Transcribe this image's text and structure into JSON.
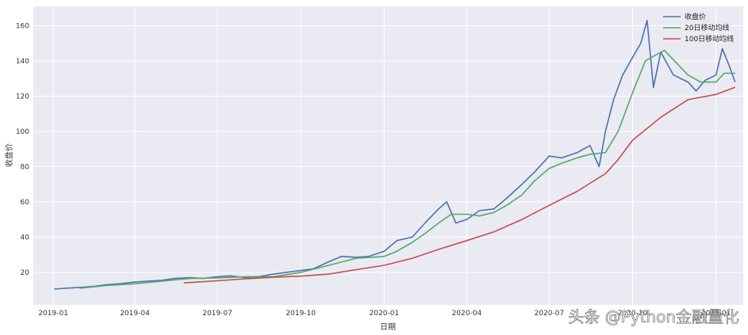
{
  "chart_data": {
    "type": "line",
    "title": "",
    "xlabel": "日期",
    "ylabel": "收盘价",
    "xlim": [
      "2018-12-10",
      "2021-01-31"
    ],
    "ylim": [
      1.5,
      171
    ],
    "grid": true,
    "legend_position": "top-right",
    "x_ticks": [
      {
        "date": "2019-01-01",
        "label": "2019-01"
      },
      {
        "date": "2019-04-01",
        "label": "2019-04"
      },
      {
        "date": "2019-07-01",
        "label": "2019-07"
      },
      {
        "date": "2019-10-01",
        "label": "2019-10"
      },
      {
        "date": "2020-01-01",
        "label": "2020-01"
      },
      {
        "date": "2020-04-01",
        "label": "2020-04"
      },
      {
        "date": "2020-07-01",
        "label": "2020-07"
      },
      {
        "date": "2020-10-01",
        "label": "2020-10"
      },
      {
        "date": "2021-01-01",
        "label": "2021-01"
      }
    ],
    "y_ticks": [
      20,
      40,
      60,
      80,
      100,
      120,
      140,
      160
    ],
    "series": [
      {
        "name": "收盘价",
        "color": "#4C72B0",
        "points": [
          [
            "2019-01-02",
            10.5
          ],
          [
            "2019-01-15",
            11
          ],
          [
            "2019-02-01",
            11.5
          ],
          [
            "2019-02-15",
            12
          ],
          [
            "2019-03-01",
            13
          ],
          [
            "2019-03-15",
            13.5
          ],
          [
            "2019-04-01",
            14.5
          ],
          [
            "2019-04-15",
            15
          ],
          [
            "2019-05-01",
            15.5
          ],
          [
            "2019-05-15",
            16.5
          ],
          [
            "2019-06-01",
            17
          ],
          [
            "2019-06-15",
            16.5
          ],
          [
            "2019-07-01",
            17.5
          ],
          [
            "2019-07-15",
            18
          ],
          [
            "2019-08-01",
            17
          ],
          [
            "2019-08-15",
            17.5
          ],
          [
            "2019-09-01",
            19
          ],
          [
            "2019-09-15",
            20
          ],
          [
            "2019-10-01",
            21
          ],
          [
            "2019-10-15",
            22
          ],
          [
            "2019-11-01",
            26
          ],
          [
            "2019-11-15",
            29
          ],
          [
            "2019-12-01",
            28.5
          ],
          [
            "2019-12-15",
            29
          ],
          [
            "2020-01-01",
            32
          ],
          [
            "2020-01-15",
            38
          ],
          [
            "2020-02-01",
            40
          ],
          [
            "2020-02-15",
            48
          ],
          [
            "2020-03-01",
            56
          ],
          [
            "2020-03-10",
            60
          ],
          [
            "2020-03-20",
            48
          ],
          [
            "2020-04-01",
            50
          ],
          [
            "2020-04-15",
            55
          ],
          [
            "2020-05-01",
            56
          ],
          [
            "2020-05-15",
            62
          ],
          [
            "2020-06-01",
            70
          ],
          [
            "2020-06-15",
            77
          ],
          [
            "2020-07-01",
            86
          ],
          [
            "2020-07-15",
            85
          ],
          [
            "2020-08-01",
            88
          ],
          [
            "2020-08-15",
            92
          ],
          [
            "2020-08-25",
            80
          ],
          [
            "2020-09-01",
            100
          ],
          [
            "2020-09-10",
            118
          ],
          [
            "2020-09-20",
            132
          ],
          [
            "2020-10-01",
            142
          ],
          [
            "2020-10-10",
            150
          ],
          [
            "2020-10-17",
            163
          ],
          [
            "2020-10-24",
            125
          ],
          [
            "2020-11-01",
            145
          ],
          [
            "2020-11-15",
            132
          ],
          [
            "2020-12-01",
            128
          ],
          [
            "2020-12-10",
            123
          ],
          [
            "2020-12-20",
            129
          ],
          [
            "2021-01-01",
            132
          ],
          [
            "2021-01-08",
            147
          ],
          [
            "2021-01-15",
            138
          ],
          [
            "2021-01-22",
            128
          ]
        ]
      },
      {
        "name": "20日移动均线",
        "color": "#55A868",
        "points": [
          [
            "2019-01-30",
            11
          ],
          [
            "2019-03-01",
            12.5
          ],
          [
            "2019-04-01",
            13.5
          ],
          [
            "2019-05-01",
            15
          ],
          [
            "2019-06-01",
            16.5
          ],
          [
            "2019-07-01",
            16.8
          ],
          [
            "2019-08-01",
            17.5
          ],
          [
            "2019-09-01",
            17.5
          ],
          [
            "2019-10-01",
            20
          ],
          [
            "2019-11-01",
            24
          ],
          [
            "2019-12-01",
            28
          ],
          [
            "2020-01-01",
            29
          ],
          [
            "2020-01-15",
            32
          ],
          [
            "2020-02-01",
            37
          ],
          [
            "2020-02-15",
            42
          ],
          [
            "2020-03-01",
            48
          ],
          [
            "2020-03-15",
            53
          ],
          [
            "2020-04-01",
            53
          ],
          [
            "2020-04-15",
            52
          ],
          [
            "2020-05-01",
            54
          ],
          [
            "2020-05-15",
            58
          ],
          [
            "2020-06-01",
            64
          ],
          [
            "2020-06-15",
            72
          ],
          [
            "2020-07-01",
            79
          ],
          [
            "2020-07-15",
            82
          ],
          [
            "2020-08-01",
            85
          ],
          [
            "2020-08-15",
            87
          ],
          [
            "2020-09-01",
            88
          ],
          [
            "2020-09-15",
            100
          ],
          [
            "2020-10-01",
            122
          ],
          [
            "2020-10-15",
            140
          ],
          [
            "2020-10-25",
            143
          ],
          [
            "2020-11-05",
            146
          ],
          [
            "2020-11-20",
            138
          ],
          [
            "2020-12-01",
            132
          ],
          [
            "2020-12-15",
            128
          ],
          [
            "2021-01-01",
            128
          ],
          [
            "2021-01-10",
            133
          ],
          [
            "2021-01-22",
            133
          ]
        ]
      },
      {
        "name": "100日移动均线",
        "color": "#C44E52",
        "points": [
          [
            "2019-05-25",
            14
          ],
          [
            "2019-07-01",
            15.2
          ],
          [
            "2019-08-01",
            16.3
          ],
          [
            "2019-09-01",
            17.2
          ],
          [
            "2019-10-01",
            17.8
          ],
          [
            "2019-11-01",
            19
          ],
          [
            "2019-12-01",
            21.5
          ],
          [
            "2020-01-01",
            24
          ],
          [
            "2020-02-01",
            28
          ],
          [
            "2020-03-01",
            33
          ],
          [
            "2020-04-01",
            38
          ],
          [
            "2020-05-01",
            43
          ],
          [
            "2020-06-01",
            50
          ],
          [
            "2020-07-01",
            58
          ],
          [
            "2020-08-01",
            66
          ],
          [
            "2020-09-01",
            76
          ],
          [
            "2020-09-15",
            84
          ],
          [
            "2020-10-01",
            95
          ],
          [
            "2020-11-01",
            108
          ],
          [
            "2020-12-01",
            118
          ],
          [
            "2021-01-01",
            121
          ],
          [
            "2021-01-22",
            125
          ]
        ]
      }
    ]
  },
  "watermark": {
    "text": "头条 @Python金融量化"
  }
}
